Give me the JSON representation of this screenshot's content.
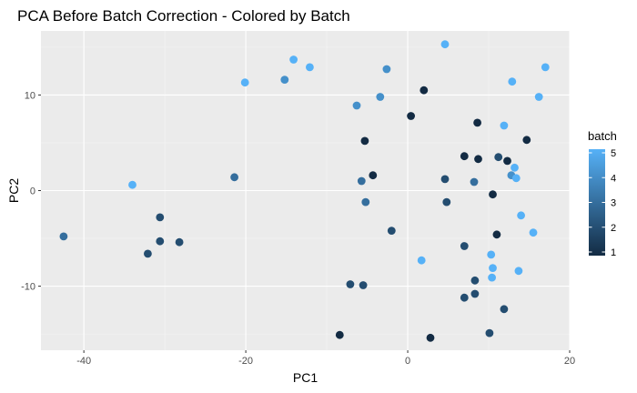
{
  "chart_data": {
    "type": "scatter",
    "title": "PCA Before Batch Correction - Colored by Batch",
    "xlabel": "PC1",
    "ylabel": "PC2",
    "xlim": [
      -45.3,
      20.0
    ],
    "ylim": [
      -16.7,
      16.7
    ],
    "x_ticks": [
      -40,
      -20,
      0,
      20
    ],
    "x_tick_labels": [
      "-40",
      "-20",
      "0",
      "20"
    ],
    "y_ticks": [
      -10,
      0,
      10
    ],
    "y_tick_labels": [
      "-10",
      "0",
      "10"
    ],
    "grid": true,
    "legend": {
      "title": "batch",
      "placement": "right",
      "type": "colorbar",
      "range": [
        1,
        5
      ],
      "ticks": [
        1,
        2,
        3,
        4,
        5
      ],
      "tick_labels": [
        "1",
        "2",
        "3",
        "4",
        "5"
      ],
      "low_color": "#132B43",
      "high_color": "#56B1F7"
    },
    "colors": {
      "panel_background": "#EBEBEB",
      "grid_major": "#FFFFFF",
      "low": "#132B43",
      "high": "#56B1F7"
    },
    "points": [
      {
        "x": 4.6,
        "y": 15.3,
        "batch": 5
      },
      {
        "x": -14.1,
        "y": 13.7,
        "batch": 5
      },
      {
        "x": -12.1,
        "y": 12.9,
        "batch": 5
      },
      {
        "x": -20.1,
        "y": 11.3,
        "batch": 5
      },
      {
        "x": -15.2,
        "y": 11.6,
        "batch": 4
      },
      {
        "x": -2.6,
        "y": 12.7,
        "batch": 4
      },
      {
        "x": 2.0,
        "y": 10.5,
        "batch": 1
      },
      {
        "x": -3.4,
        "y": 9.8,
        "batch": 4
      },
      {
        "x": -6.3,
        "y": 8.9,
        "batch": 4
      },
      {
        "x": 0.4,
        "y": 7.8,
        "batch": 1
      },
      {
        "x": 17.0,
        "y": 12.9,
        "batch": 5
      },
      {
        "x": 12.9,
        "y": 11.4,
        "batch": 5
      },
      {
        "x": 16.2,
        "y": 9.8,
        "batch": 5
      },
      {
        "x": 8.6,
        "y": 7.1,
        "batch": 1
      },
      {
        "x": 11.9,
        "y": 6.8,
        "batch": 5
      },
      {
        "x": -5.3,
        "y": 5.2,
        "batch": 1
      },
      {
        "x": 14.7,
        "y": 5.3,
        "batch": 1
      },
      {
        "x": 7.0,
        "y": 3.6,
        "batch": 1
      },
      {
        "x": 8.7,
        "y": 3.3,
        "batch": 1
      },
      {
        "x": 11.2,
        "y": 3.5,
        "batch": 2
      },
      {
        "x": 12.3,
        "y": 3.1,
        "batch": 1
      },
      {
        "x": 13.2,
        "y": 2.4,
        "batch": 5
      },
      {
        "x": 12.8,
        "y": 1.6,
        "batch": 4
      },
      {
        "x": 13.4,
        "y": 1.3,
        "batch": 5
      },
      {
        "x": -4.3,
        "y": 1.6,
        "batch": 1
      },
      {
        "x": -5.7,
        "y": 1.0,
        "batch": 3
      },
      {
        "x": 4.6,
        "y": 1.2,
        "batch": 2
      },
      {
        "x": 8.2,
        "y": 0.9,
        "batch": 3
      },
      {
        "x": 10.5,
        "y": -0.4,
        "batch": 1
      },
      {
        "x": -21.4,
        "y": 1.4,
        "batch": 3
      },
      {
        "x": -34.0,
        "y": 0.6,
        "batch": 5
      },
      {
        "x": -5.2,
        "y": -1.2,
        "batch": 3
      },
      {
        "x": 4.8,
        "y": -1.2,
        "batch": 2
      },
      {
        "x": 14.0,
        "y": -2.6,
        "batch": 5
      },
      {
        "x": -30.6,
        "y": -2.8,
        "batch": 2
      },
      {
        "x": -2.0,
        "y": -4.2,
        "batch": 2
      },
      {
        "x": 11.0,
        "y": -4.6,
        "batch": 1
      },
      {
        "x": 15.5,
        "y": -4.4,
        "batch": 5
      },
      {
        "x": -42.5,
        "y": -4.8,
        "batch": 3
      },
      {
        "x": -30.6,
        "y": -5.3,
        "batch": 2
      },
      {
        "x": -28.2,
        "y": -5.4,
        "batch": 2
      },
      {
        "x": 7.0,
        "y": -5.8,
        "batch": 2
      },
      {
        "x": -32.1,
        "y": -6.6,
        "batch": 2
      },
      {
        "x": 10.3,
        "y": -6.7,
        "batch": 5
      },
      {
        "x": 1.7,
        "y": -7.3,
        "batch": 5
      },
      {
        "x": 10.5,
        "y": -8.1,
        "batch": 5
      },
      {
        "x": 13.7,
        "y": -8.4,
        "batch": 5
      },
      {
        "x": 10.4,
        "y": -9.1,
        "batch": 5
      },
      {
        "x": 8.3,
        "y": -9.4,
        "batch": 2
      },
      {
        "x": -7.1,
        "y": -9.8,
        "batch": 2
      },
      {
        "x": -5.5,
        "y": -9.9,
        "batch": 2
      },
      {
        "x": 8.3,
        "y": -10.8,
        "batch": 2
      },
      {
        "x": 7.0,
        "y": -11.2,
        "batch": 2
      },
      {
        "x": 11.9,
        "y": -12.4,
        "batch": 2
      },
      {
        "x": -8.4,
        "y": -15.1,
        "batch": 1
      },
      {
        "x": 2.8,
        "y": -15.4,
        "batch": 1
      },
      {
        "x": 10.1,
        "y": -14.9,
        "batch": 2
      }
    ]
  }
}
